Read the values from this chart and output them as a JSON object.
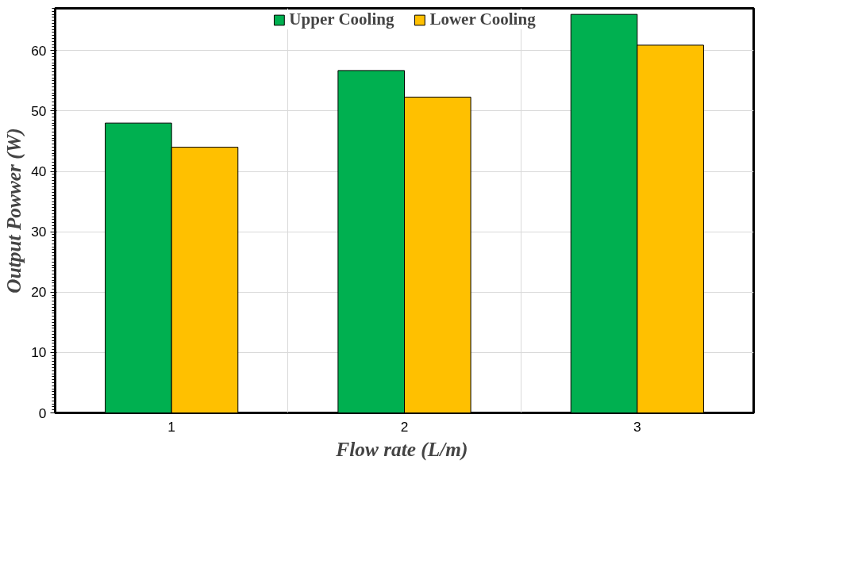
{
  "chart_data": {
    "type": "bar",
    "xlabel": "Flow rate  (L/m)",
    "ylabel": "Output Powwer (W)",
    "categories": [
      "1",
      "2",
      "3"
    ],
    "series": [
      {
        "name": "Upper Cooling",
        "color": "#00b050",
        "values": [
          48.0,
          56.7,
          66.0
        ]
      },
      {
        "name": "Lower Cooling",
        "color": "#ffc000",
        "values": [
          44.0,
          52.3,
          60.9
        ]
      }
    ],
    "ylim": [
      0,
      67
    ],
    "yticks": [
      0,
      10,
      20,
      30,
      40,
      50,
      60
    ],
    "grid": true,
    "legend": "top"
  }
}
